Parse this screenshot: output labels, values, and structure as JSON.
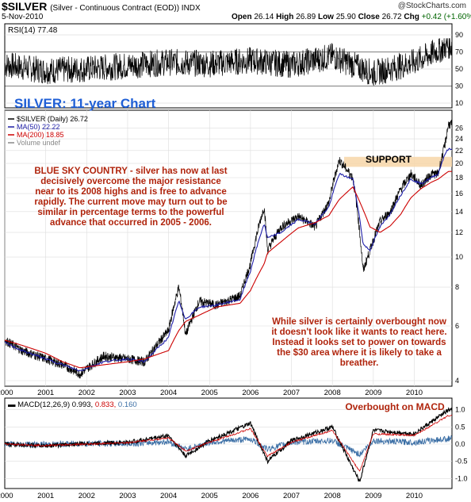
{
  "header": {
    "symbol": "$SILVER",
    "description": "(Silver - Continuous Contract (EOD)) INDX",
    "date": "5-Nov-2010",
    "open_label": "Open",
    "open": "26.14",
    "high_label": "High",
    "high": "26.89",
    "low_label": "Low",
    "low": "25.90",
    "close_label": "Close",
    "close": "26.72",
    "chg_label": "Chg",
    "chg": "+0.42 (+1.60%)",
    "up_arrow": "▲",
    "credit": "@StockCharts.com"
  },
  "chart_data": [
    {
      "type": "line",
      "title": "RSI(14) 77.48",
      "ylim": [
        10,
        90
      ],
      "y_ticks": [
        "90",
        "70",
        "50",
        "30",
        "10"
      ],
      "overbought": 70,
      "oversold": 30,
      "x": [
        "2000",
        "2001",
        "2002",
        "2003",
        "2004",
        "2005",
        "2006",
        "2007",
        "2008",
        "2009",
        "2010",
        "2010-11"
      ],
      "series": [
        {
          "name": "RSI(14)",
          "values": [
            55,
            48,
            50,
            54,
            58,
            56,
            60,
            55,
            65,
            45,
            58,
            77.48
          ]
        }
      ]
    },
    {
      "type": "line",
      "title": "SILVER: 11-year Chart",
      "log_scale": true,
      "ylim": [
        4,
        27
      ],
      "y_ticks": [
        "26",
        "24",
        "22",
        "20",
        "18",
        "16",
        "14",
        "12",
        "10",
        "8",
        "6",
        "4"
      ],
      "x_ticks": [
        "2000",
        "2001",
        "2002",
        "2003",
        "2004",
        "2005",
        "2006",
        "2007",
        "2008",
        "2009",
        "2010"
      ],
      "legend": [
        {
          "name": "$SILVER (Daily) 26.72",
          "color": "#000000"
        },
        {
          "name": "MA(50) 22.22",
          "color": "#1f1fa8"
        },
        {
          "name": "MA(200) 18.85",
          "color": "#cc0000"
        },
        {
          "name": "Volume undef",
          "color": "#888888"
        }
      ],
      "x": [
        "2000-01",
        "2000-06",
        "2001-01",
        "2001-06",
        "2001-11",
        "2002-06",
        "2003-01",
        "2003-06",
        "2004-01",
        "2004-04",
        "2004-06",
        "2004-10",
        "2005-03",
        "2005-10",
        "2006-01",
        "2006-05",
        "2006-06",
        "2006-10",
        "2007-03",
        "2007-08",
        "2007-12",
        "2008-03",
        "2008-07",
        "2008-10",
        "2008-12",
        "2009-03",
        "2009-06",
        "2009-09",
        "2009-12",
        "2010-03",
        "2010-06",
        "2010-08",
        "2010-10",
        "2010-11"
      ],
      "series": [
        {
          "name": "$SILVER",
          "values": [
            5.4,
            5.0,
            4.7,
            4.5,
            4.2,
            4.8,
            4.7,
            4.6,
            5.8,
            8.0,
            5.6,
            7.2,
            7.0,
            7.5,
            9.5,
            14.5,
            10.5,
            12.5,
            13.5,
            12.5,
            15.0,
            20.5,
            18.0,
            9.0,
            10.5,
            13.0,
            14.0,
            16.5,
            18.5,
            17.0,
            18.5,
            18.5,
            23.0,
            26.72
          ]
        },
        {
          "name": "MA(50)",
          "values": [
            5.3,
            5.0,
            4.7,
            4.5,
            4.3,
            4.6,
            4.7,
            4.6,
            5.5,
            7.2,
            6.3,
            6.9,
            7.0,
            7.3,
            9.0,
            12.8,
            11.5,
            12.0,
            13.2,
            12.8,
            14.5,
            18.5,
            17.8,
            11.0,
            10.5,
            12.5,
            13.8,
            15.8,
            17.8,
            17.2,
            18.0,
            18.5,
            21.5,
            22.22
          ]
        },
        {
          "name": "MA(200)",
          "values": [
            5.4,
            5.2,
            4.9,
            4.6,
            4.4,
            4.5,
            4.6,
            4.7,
            5.0,
            5.8,
            6.2,
            6.5,
            6.9,
            7.1,
            7.8,
            9.5,
            10.3,
            11.2,
            12.4,
            12.9,
            13.6,
            15.3,
            16.8,
            14.2,
            12.5,
            12.0,
            12.6,
            13.7,
            15.5,
            16.6,
            17.4,
            17.8,
            18.5,
            18.85
          ]
        }
      ],
      "support_zone": [
        19.5,
        21.0
      ],
      "support_label": "SUPPORT"
    },
    {
      "type": "line",
      "title": "MACD(12,26,9)",
      "macd": "0.993",
      "signal": "0.833",
      "histogram": "0.160",
      "ylim": [
        -1.2,
        1.2
      ],
      "y_ticks": [
        "1.0",
        "0.5",
        "0.0",
        "-0.5",
        "-1.0"
      ],
      "x_ticks": [
        "2000",
        "2001",
        "2002",
        "2003",
        "2004",
        "2005",
        "2006",
        "2007",
        "2008",
        "2009",
        "2010"
      ],
      "x": [
        "2000",
        "2001",
        "2002",
        "2003",
        "2004",
        "2004-06",
        "2005",
        "2006",
        "2006-06",
        "2007",
        "2008",
        "2008-09",
        "2009",
        "2010",
        "2010-11"
      ],
      "series": [
        {
          "name": "MACD",
          "values": [
            0.0,
            -0.05,
            0.02,
            0.05,
            0.25,
            -0.35,
            0.1,
            0.6,
            -0.5,
            0.1,
            0.5,
            -1.1,
            0.4,
            0.3,
            0.993
          ]
        },
        {
          "name": "Signal",
          "values": [
            0.0,
            -0.04,
            0.0,
            0.04,
            0.18,
            -0.2,
            0.05,
            0.45,
            -0.35,
            0.05,
            0.4,
            -0.8,
            0.3,
            0.25,
            0.833
          ]
        }
      ]
    }
  ],
  "annotations": {
    "chart_title": "SILVER: 11-year Chart",
    "blue_sky": [
      "BLUE SKY COUNTRY - silver has now at last",
      "decisively overcome the major resistance",
      "near to its 2008 highs and is free to advance",
      "rapidly. The current move may turn out to be",
      "similar in percentage terms to the powerful",
      "advance that occurred in 2005 - 2006."
    ],
    "overbought": [
      "While silver is certainly overbought now",
      "it doesn't look like it wants to react here.",
      "Instead it looks set to power on towards",
      "the $30 area where it is likely to take a",
      "breather."
    ],
    "macd_note": "Overbought on MACD"
  },
  "colors": {
    "price": "#000000",
    "ma50": "#1f1fa8",
    "ma200": "#cc0000",
    "annotation": "#b0240c",
    "title_blue": "#1f5fd6",
    "support": "#f7d6a8",
    "macd_hist": "#3a6ea5"
  }
}
